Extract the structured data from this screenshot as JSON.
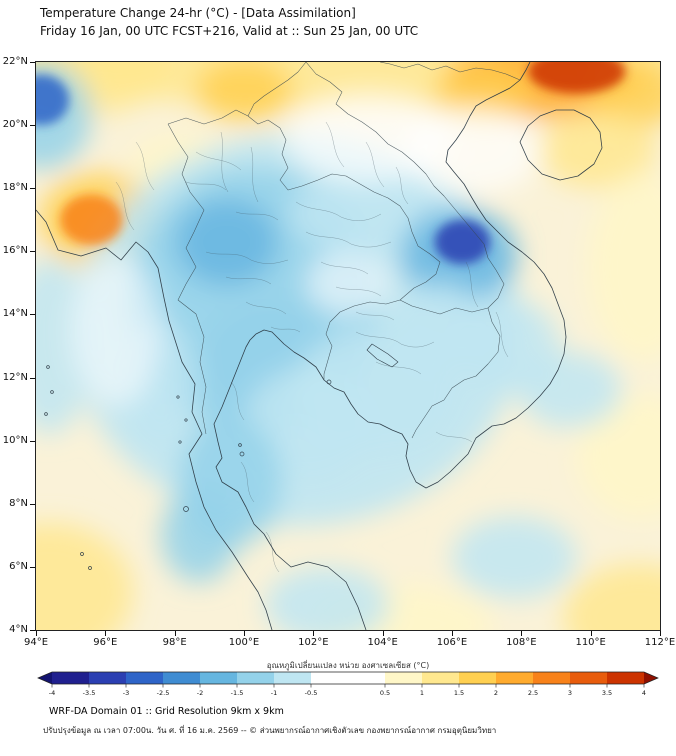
{
  "header": {
    "title": "Temperature Change 24-hr (°C) - [Data Assimilation]",
    "subtitle": "Friday 16 Jan, 00 UTC FCST+216, Valid at :: Sun 25 Jan, 00 UTC"
  },
  "footer": {
    "line1": "WRF-DA Domain 01 :: Grid Resolution 9km x 9km",
    "line2": "ปรับปรุงข้อมูล ณ เวลา 07:00น. วัน ศ. ที่ 16 ม.ค. 2569 -- © ส่วนพยากรณ์อากาศเชิงตัวเลข กองพยากรณ์อากาศ กรมอุตุนิยมวิทยา"
  },
  "chart_data": {
    "type": "heatmap",
    "title": "Temperature Change 24-hr (°C) - [Data Assimilation]",
    "subtitle": "Friday 16 Jan, 00 UTC FCST+216, Valid at :: Sun 25 Jan, 00 UTC",
    "units": "°C",
    "background_color": "#faf2d8",
    "x_axis": {
      "range": [
        94,
        112
      ],
      "tick_values": [
        94,
        96,
        98,
        100,
        102,
        104,
        106,
        108,
        110,
        112
      ],
      "tick_labels": [
        "94°E",
        "96°E",
        "98°E",
        "100°E",
        "102°E",
        "104°E",
        "106°E",
        "108°E",
        "110°E",
        "112°E"
      ]
    },
    "y_axis": {
      "range": [
        4,
        22
      ],
      "tick_values": [
        22,
        20,
        18,
        16,
        14,
        12,
        10,
        8,
        6,
        4
      ],
      "tick_labels": [
        "22°N",
        "20°N",
        "18°N",
        "16°N",
        "14°N",
        "12°N",
        "10°N",
        "8°N",
        "6°N",
        "4°N"
      ]
    },
    "colorbar": {
      "label": "อุณหภูมิเปลี่ยนแปลง หน่วย องศาเซลเซียส (°C)",
      "units": "°C",
      "extend": "both",
      "boundaries": [
        -4,
        -3.5,
        -3,
        -2.5,
        -2,
        -1.5,
        -1,
        -0.5,
        0.5,
        1,
        1.5,
        2,
        2.5,
        3,
        3.5,
        4
      ],
      "tick_labels": [
        "-4",
        "-3.5",
        "-3",
        "-2.5",
        "-2",
        "-1.5",
        "-1",
        "-0.5",
        "0.5",
        "1",
        "1.5",
        "2",
        "2.5",
        "3",
        "3.5",
        "4"
      ],
      "colors": [
        "#20208f",
        "#2b3fb2",
        "#2e64c8",
        "#3f8cd2",
        "#66b6e0",
        "#94d2ea",
        "#bfe6f2",
        "#ffffff",
        "#fff7c8",
        "#ffe88f",
        "#ffd051",
        "#ffab2e",
        "#f8821a",
        "#e85c0c",
        "#cc3300"
      ],
      "arrow_left_color": "#131370",
      "arrow_right_color": "#8f1000"
    },
    "grid": {
      "lons": [
        94,
        96,
        98,
        100,
        102,
        104,
        106,
        108,
        110,
        112
      ],
      "lats": [
        22,
        20,
        18,
        16,
        14,
        12,
        10,
        8,
        6,
        4
      ],
      "values_degC": [
        [
          0.8,
          1.2,
          1.5,
          1.7,
          0.8,
          0.9,
          1.8,
          3.2,
          2.6,
          1.5
        ],
        [
          -2.5,
          0.8,
          1.0,
          0.6,
          0.3,
          0.4,
          1.2,
          1.8,
          1.2,
          1.0
        ],
        [
          0.5,
          1.6,
          0.6,
          -0.3,
          -0.6,
          -0.4,
          -0.3,
          0.4,
          0.8,
          0.8
        ],
        [
          1.2,
          1.8,
          -0.4,
          -1.4,
          -0.8,
          -0.9,
          -2.8,
          -0.4,
          0.6,
          0.7
        ],
        [
          0.2,
          0.1,
          -0.8,
          -1.3,
          -0.9,
          -1.0,
          -0.8,
          -0.3,
          0.4,
          0.6
        ],
        [
          -0.4,
          -0.3,
          -1.0,
          -1.3,
          -0.9,
          -1.2,
          -0.8,
          -0.4,
          -0.2,
          0.5
        ],
        [
          0.1,
          -0.3,
          -1.0,
          -1.4,
          -0.8,
          -0.3,
          -0.5,
          0.2,
          0.4,
          0.6
        ],
        [
          0.4,
          0.1,
          -0.6,
          -1.2,
          -0.6,
          -0.2,
          -0.4,
          0.3,
          0.5,
          0.8
        ],
        [
          0.9,
          0.4,
          -0.5,
          -0.9,
          -0.7,
          -0.2,
          0.2,
          0.4,
          0.6,
          1.0
        ],
        [
          1.3,
          0.8,
          0.0,
          -0.4,
          -0.6,
          -0.2,
          0.3,
          0.5,
          0.9,
          1.2
        ]
      ]
    },
    "features": [
      {
        "lon": 103.0,
        "lat": 22.4,
        "rx": 10.0,
        "ry": 1.9,
        "v": 1.2
      },
      {
        "lon": 95.3,
        "lat": 21.8,
        "rx": 2.6,
        "ry": 1.5,
        "v": 1.1
      },
      {
        "lon": 100.0,
        "lat": 21.1,
        "rx": 1.4,
        "ry": 1.0,
        "v": 1.7
      },
      {
        "lon": 98.2,
        "lat": 18.6,
        "rx": 1.5,
        "ry": 1.1,
        "v": 0.7
      },
      {
        "lon": 108.6,
        "lat": 21.5,
        "rx": 2.8,
        "ry": 1.3,
        "v": 2.4,
        "desc": "broad warming, N Vietnam / S China"
      },
      {
        "lon": 109.6,
        "lat": 21.7,
        "rx": 1.4,
        "ry": 0.7,
        "v": 3.6,
        "sharp": true,
        "desc": "strongest 24-hr warming"
      },
      {
        "lon": 106.9,
        "lat": 21.0,
        "rx": 1.4,
        "ry": 0.9,
        "v": 1.8
      },
      {
        "lon": 111.3,
        "lat": 21.0,
        "rx": 1.4,
        "ry": 1.1,
        "v": 1.6
      },
      {
        "lon": 110.2,
        "lat": 19.2,
        "rx": 1.7,
        "ry": 1.2,
        "v": 1.0
      },
      {
        "lon": 95.8,
        "lat": 17.0,
        "rx": 1.7,
        "ry": 1.5,
        "v": 1.5
      },
      {
        "lon": 95.6,
        "lat": 17.0,
        "rx": 0.9,
        "ry": 0.8,
        "v": 2.7,
        "sharp": true,
        "desc": "warming over W Myanmar coast"
      },
      {
        "lon": 111.5,
        "lat": 15.5,
        "rx": 1.6,
        "ry": 3.0,
        "v": 0.9
      },
      {
        "lon": 111.4,
        "lat": 9.5,
        "rx": 1.8,
        "ry": 2.0,
        "v": 0.8
      },
      {
        "lon": 94.4,
        "lat": 5.2,
        "rx": 2.4,
        "ry": 2.2,
        "v": 1.1
      },
      {
        "lon": 111.4,
        "lat": 4.4,
        "rx": 2.2,
        "ry": 1.7,
        "v": 1.1
      },
      {
        "lon": 104.6,
        "lat": 4.2,
        "rx": 2.6,
        "ry": 1.2,
        "v": 0.6
      },
      {
        "lon": 105.2,
        "lat": 10.3,
        "rx": 0.5,
        "ry": 0.4,
        "v": 1.0
      },
      {
        "lon": 101.5,
        "lat": 13.5,
        "rx": 6.5,
        "ry": 6.2,
        "v": -0.6,
        "o": 0.9
      },
      {
        "lon": 100.3,
        "lat": 14.5,
        "rx": 3.6,
        "ry": 4.2,
        "v": -1.1
      },
      {
        "lon": 99.5,
        "lat": 16.3,
        "rx": 1.5,
        "ry": 1.4,
        "v": -1.6,
        "desc": "cooling core NW Thailand"
      },
      {
        "lon": 100.8,
        "lat": 12.6,
        "rx": 2.0,
        "ry": 1.9,
        "v": -1.3
      },
      {
        "lon": 101.8,
        "lat": 10.5,
        "rx": 1.8,
        "ry": 1.8,
        "v": -0.9
      },
      {
        "lon": 99.6,
        "lat": 8.7,
        "rx": 1.5,
        "ry": 2.1,
        "v": -1.4
      },
      {
        "lon": 98.7,
        "lat": 7.0,
        "rx": 1.1,
        "ry": 1.5,
        "v": -1.1
      },
      {
        "lon": 97.6,
        "lat": 11.8,
        "rx": 1.0,
        "ry": 2.0,
        "v": -1.0
      },
      {
        "lon": 103.8,
        "lat": 11.6,
        "rx": 2.4,
        "ry": 2.0,
        "v": -0.9
      },
      {
        "lon": 103.5,
        "lat": 17.2,
        "rx": 2.2,
        "ry": 1.3,
        "v": -1.0
      },
      {
        "lon": 106.2,
        "lat": 15.9,
        "rx": 1.7,
        "ry": 1.5,
        "v": -1.7
      },
      {
        "lon": 106.3,
        "lat": 16.3,
        "rx": 0.8,
        "ry": 0.7,
        "v": -3.2,
        "sharp": true,
        "desc": "strongest 24-hr cooling, central Vietnam/Laos border"
      },
      {
        "lon": 94.2,
        "lat": 20.3,
        "rx": 1.4,
        "ry": 1.7,
        "v": -1.3
      },
      {
        "lon": 94.15,
        "lat": 20.8,
        "rx": 0.8,
        "ry": 0.8,
        "v": -3.0,
        "sharp": true,
        "desc": "cooling at west edge"
      },
      {
        "lon": 94.4,
        "lat": 13.0,
        "rx": 1.2,
        "ry": 2.8,
        "v": -0.7
      },
      {
        "lon": 102.4,
        "lat": 4.8,
        "rx": 1.8,
        "ry": 1.2,
        "v": -0.9
      },
      {
        "lon": 107.6,
        "lat": 13.0,
        "rx": 1.5,
        "ry": 1.5,
        "v": -0.6
      },
      {
        "lon": 109.4,
        "lat": 11.6,
        "rx": 1.5,
        "ry": 1.2,
        "v": -0.6
      },
      {
        "lon": 107.8,
        "lat": 6.3,
        "rx": 1.8,
        "ry": 1.3,
        "v": -0.7
      },
      {
        "lon": 105.6,
        "lat": 13.6,
        "rx": 1.4,
        "ry": 1.4,
        "v": -0.8
      },
      {
        "lon": 103.6,
        "lat": 19.6,
        "rx": 2.4,
        "ry": 1.4,
        "v": 0,
        "o": 0.7
      },
      {
        "lon": 106.6,
        "lat": 19.2,
        "rx": 2.0,
        "ry": 1.4,
        "v": 0,
        "o": 0.7
      },
      {
        "lon": 103.0,
        "lat": 15.0,
        "rx": 1.2,
        "ry": 1.0,
        "v": 0,
        "o": 0.6
      },
      {
        "lon": 96.3,
        "lat": 13.5,
        "rx": 1.3,
        "ry": 2.4,
        "v": 0,
        "o": 0.55
      }
    ]
  }
}
